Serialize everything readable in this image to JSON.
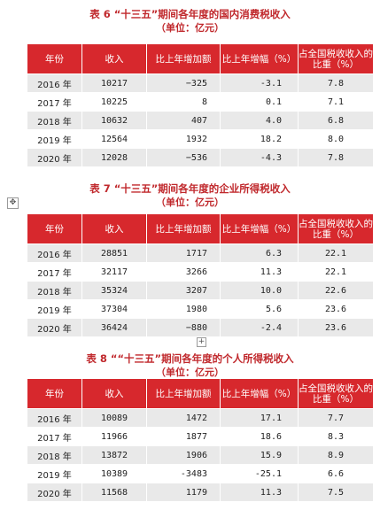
{
  "tables": [
    {
      "title": "表 6 “十三五”期间各年度的国内消费税收入",
      "unit": "（单位：亿元）",
      "headers": [
        "年份",
        "收入",
        "比上年增加额",
        "比上年增幅（%）",
        "占全国税收收入的比重（%）"
      ],
      "rows": [
        {
          "year": "2016 年",
          "income": "10217",
          "increase": "−325",
          "rate": "-3.1",
          "share": "7.8"
        },
        {
          "year": "2017 年",
          "income": "10225",
          "increase": "8",
          "rate": "0.1",
          "share": "7.1"
        },
        {
          "year": "2018 年",
          "income": "10632",
          "increase": "407",
          "rate": "4.0",
          "share": "6.8"
        },
        {
          "year": "2019 年",
          "income": "12564",
          "increase": "1932",
          "rate": "18.2",
          "share": "8.0"
        },
        {
          "year": "2020 年",
          "income": "12028",
          "increase": "−536",
          "rate": "-4.3",
          "share": "7.8"
        }
      ]
    },
    {
      "title": "表 7 “十三五”期间各年度的企业所得税收入",
      "unit": "（单位：亿元）",
      "headers": [
        "年份",
        "收入",
        "比上年增加额",
        "比上年增幅（%）",
        "占全国税收收入的比重（%）"
      ],
      "rows": [
        {
          "year": "2016 年",
          "income": "28851",
          "increase": "1717",
          "rate": "6.3",
          "share": "22.1"
        },
        {
          "year": "2017 年",
          "income": "32117",
          "increase": "3266",
          "rate": "11.3",
          "share": "22.1"
        },
        {
          "year": "2018 年",
          "income": "35324",
          "increase": "3207",
          "rate": "10.0",
          "share": "22.6"
        },
        {
          "year": "2019 年",
          "income": "37304",
          "increase": "1980",
          "rate": "5.6",
          "share": "23.6"
        },
        {
          "year": "2020 年",
          "income": "36424",
          "increase": "−880",
          "rate": "-2.4",
          "share": "23.6"
        }
      ]
    },
    {
      "title": "表 8 ““十三五”期间各年度的个人所得税收入",
      "unit": "（单位：亿元）",
      "headers": [
        "年份",
        "收入",
        "比上年增加额",
        "比上年增幅（%）",
        "占全国税收收入的比重（%）"
      ],
      "rows": [
        {
          "year": "2016 年",
          "income": "10089",
          "increase": "1472",
          "rate": "17.1",
          "share": "7.7"
        },
        {
          "year": "2017 年",
          "income": "11966",
          "increase": "1877",
          "rate": "18.6",
          "share": "8.3"
        },
        {
          "year": "2018 年",
          "income": "13872",
          "increase": "1906",
          "rate": "15.9",
          "share": "8.9"
        },
        {
          "year": "2019 年",
          "income": "10389",
          "increase": "-3483",
          "rate": "-25.1",
          "share": "6.6"
        },
        {
          "year": "2020 年",
          "income": "11568",
          "increase": "1179",
          "rate": "11.3",
          "share": "7.5"
        }
      ]
    }
  ],
  "icons": {
    "move_handle": "move-arrows-icon",
    "add_row": "plus-icon"
  },
  "colors": {
    "header_bg": "#d7282d",
    "title_text": "#c0282c",
    "stripe": "#e9e9e9"
  }
}
